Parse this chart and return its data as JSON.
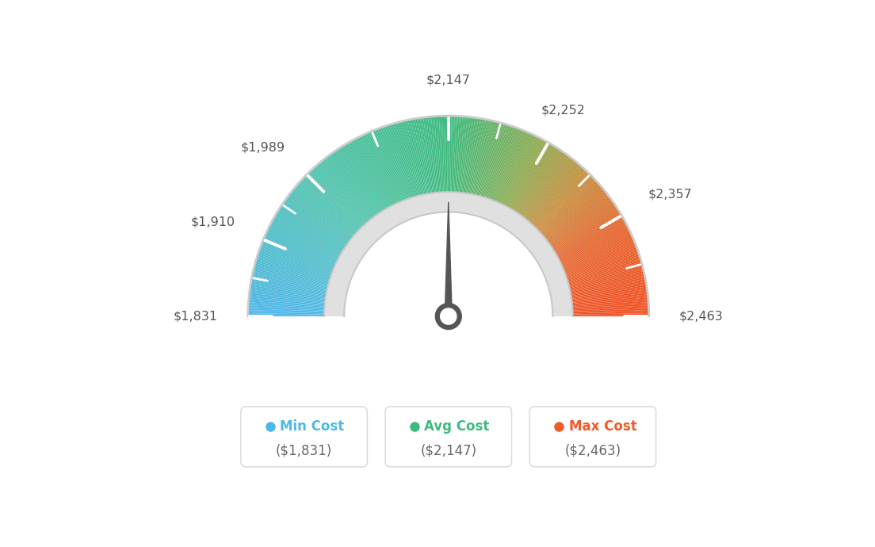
{
  "min_val": 1831,
  "avg_val": 2147,
  "max_val": 2463,
  "tick_labels": [
    "$1,831",
    "$1,910",
    "$1,989",
    "$2,147",
    "$2,252",
    "$2,357",
    "$2,463"
  ],
  "tick_values": [
    1831,
    1910,
    1989,
    2147,
    2252,
    2357,
    2463
  ],
  "minor_tick_values": [
    1870,
    1950,
    2068,
    2200,
    2305,
    2410
  ],
  "color_stops": [
    [
      0.0,
      [
        78,
        182,
        232
      ]
    ],
    [
      0.25,
      [
        80,
        195,
        175
      ]
    ],
    [
      0.5,
      [
        61,
        186,
        126
      ]
    ],
    [
      0.65,
      [
        140,
        170,
        80
      ]
    ],
    [
      0.75,
      [
        200,
        140,
        60
      ]
    ],
    [
      0.85,
      [
        230,
        100,
        45
      ]
    ],
    [
      1.0,
      [
        240,
        80,
        35
      ]
    ]
  ],
  "legend": [
    {
      "label": "Min Cost",
      "value": "($1,831)",
      "color": "#4db8e8"
    },
    {
      "label": "Avg Cost",
      "value": "($2,147)",
      "color": "#3dba7e"
    },
    {
      "label": "Max Cost",
      "value": "($2,463)",
      "color": "#f05a28"
    }
  ],
  "background_color": "#ffffff",
  "needle_value": 2147
}
